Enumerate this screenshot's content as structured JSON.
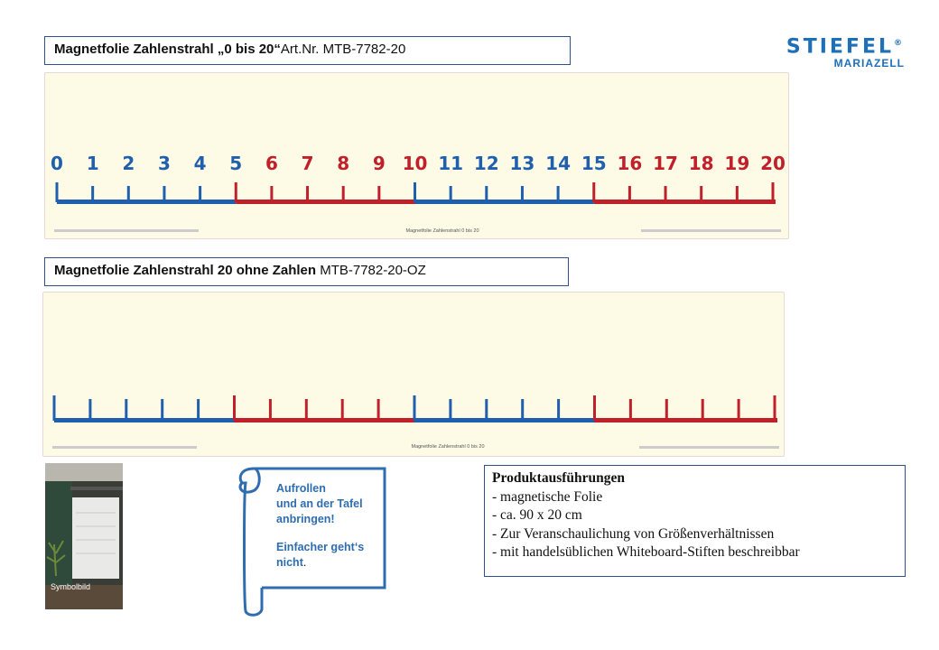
{
  "product1": {
    "name": "Magnetfolie Zahlenstrahl „0 bis 20“",
    "article": "Art.Nr. MTB-7782-20",
    "numbers": [
      "0",
      "1",
      "2",
      "3",
      "4",
      "5",
      "6",
      "7",
      "8",
      "9",
      "10",
      "11",
      "12",
      "13",
      "14",
      "15",
      "16",
      "17",
      "18",
      "19",
      "20"
    ],
    "footer_center": "Magnetfolie Zahlenstrahl 0 bis 20"
  },
  "product2": {
    "name": "Magnetfolie Zahlenstrahl 20 ohne Zahlen",
    "article": "MTB-7782-20-OZ",
    "footer_center": "Magnetfolie Zahlenstrahl 0 bis 20"
  },
  "colors": {
    "blue": "#1f5fae",
    "red": "#c0202a",
    "board": "#fdfbe6",
    "accent": "#2e6db0"
  },
  "logo": {
    "main": "STIEFEL",
    "registered": "®",
    "sub": "MARIAZELL"
  },
  "photo": {
    "label": "Symbolbild"
  },
  "scroll": {
    "line1": "Aufrollen",
    "line2": "und an der Tafel",
    "line3": "anbringen!",
    "line4": "Einfacher geht‘s",
    "line5_bold": "nicht",
    "line5_rest": "."
  },
  "features": {
    "title": "Produktausführungen",
    "items": [
      "- magnetische Folie",
      "- ca. 90 x 20 cm",
      "- Zur Veranschaulichung von  Größenverhältnissen",
      "- mit handelsüblichen Whiteboard-Stiften beschreibbar"
    ]
  }
}
